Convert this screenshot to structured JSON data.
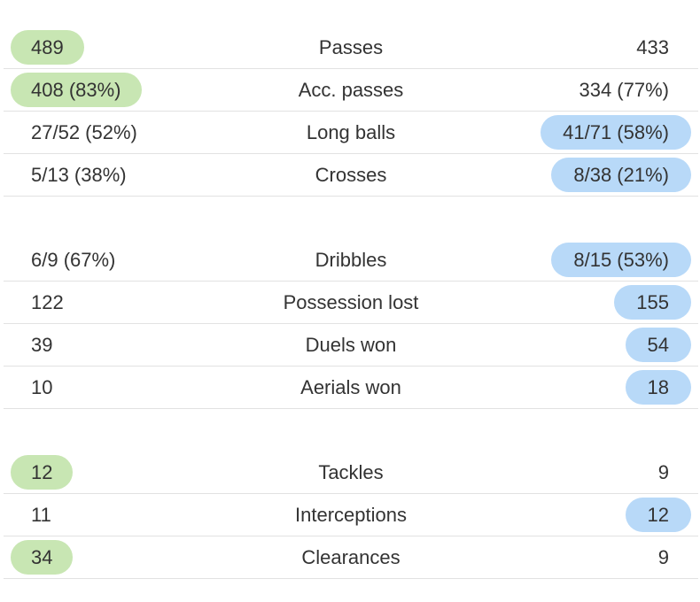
{
  "colors": {
    "home_highlight": "#c8e6b3",
    "away_highlight": "#b8d9f8",
    "divider": "#e2e2e2"
  },
  "groups": [
    {
      "rows": [
        {
          "label": "Passes",
          "home": "489",
          "away": "433",
          "highlight": "home"
        },
        {
          "label": "Acc. passes",
          "home": "408 (83%)",
          "away": "334 (77%)",
          "highlight": "home"
        },
        {
          "label": "Long balls",
          "home": "27/52 (52%)",
          "away": "41/71 (58%)",
          "highlight": "away"
        },
        {
          "label": "Crosses",
          "home": "5/13 (38%)",
          "away": "8/38 (21%)",
          "highlight": "away"
        }
      ]
    },
    {
      "rows": [
        {
          "label": "Dribbles",
          "home": "6/9 (67%)",
          "away": "8/15 (53%)",
          "highlight": "away"
        },
        {
          "label": "Possession lost",
          "home": "122",
          "away": "155",
          "highlight": "away"
        },
        {
          "label": "Duels won",
          "home": "39",
          "away": "54",
          "highlight": "away"
        },
        {
          "label": "Aerials won",
          "home": "10",
          "away": "18",
          "highlight": "away"
        }
      ]
    },
    {
      "rows": [
        {
          "label": "Tackles",
          "home": "12",
          "away": "9",
          "highlight": "home"
        },
        {
          "label": "Interceptions",
          "home": "11",
          "away": "12",
          "highlight": "away"
        },
        {
          "label": "Clearances",
          "home": "34",
          "away": "9",
          "highlight": "home"
        }
      ]
    }
  ]
}
